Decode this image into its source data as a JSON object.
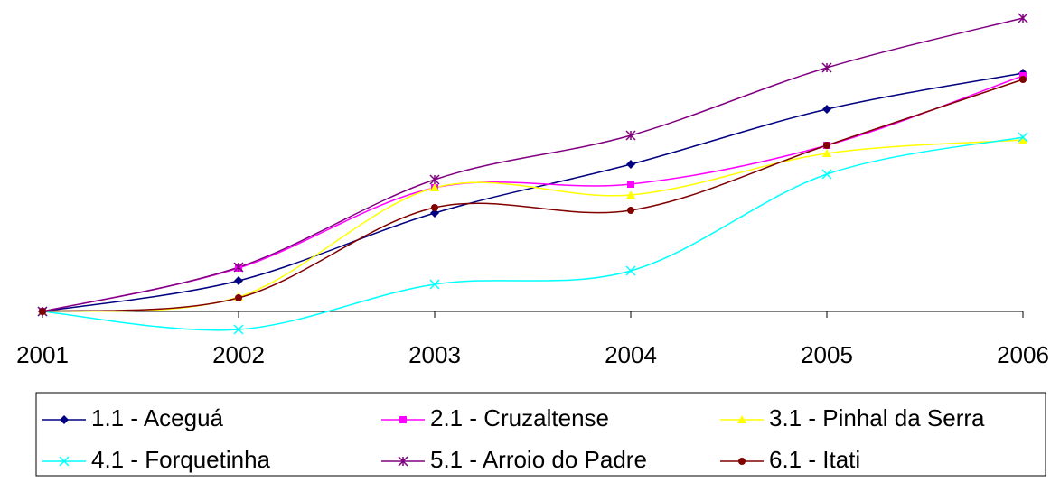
{
  "chart_data": {
    "type": "line",
    "categories": [
      "2001",
      "2002",
      "2003",
      "2004",
      "2005",
      "2006"
    ],
    "series": [
      {
        "name": "1.1 - Aceguá",
        "color": "#000080",
        "marker": "diamond",
        "values": [
          0,
          34,
          109,
          163,
          224,
          264
        ]
      },
      {
        "name": "2.1 - Cruzaltense",
        "color": "#ff00ff",
        "marker": "square",
        "values": [
          0,
          48,
          137,
          141,
          184,
          261
        ]
      },
      {
        "name": "3.1 - Pinhal da Serra",
        "color": "#ffff00",
        "marker": "triangle",
        "values": [
          0,
          16,
          137,
          129,
          175,
          190
        ]
      },
      {
        "name": "4.1 - Forquetinha",
        "color": "#00ffff",
        "marker": "x",
        "values": [
          0,
          -20,
          30,
          45,
          152,
          193
        ]
      },
      {
        "name": "5.1 - Arroio do Padre",
        "color": "#800080",
        "marker": "star",
        "values": [
          0,
          49,
          146,
          195,
          270,
          325
        ]
      },
      {
        "name": "6.1 - Itati",
        "color": "#800000",
        "marker": "circle",
        "values": [
          0,
          15,
          115,
          112,
          184,
          257
        ]
      }
    ],
    "ylim": [
      -25,
      345
    ],
    "smooth": true,
    "legend": "bottom"
  }
}
